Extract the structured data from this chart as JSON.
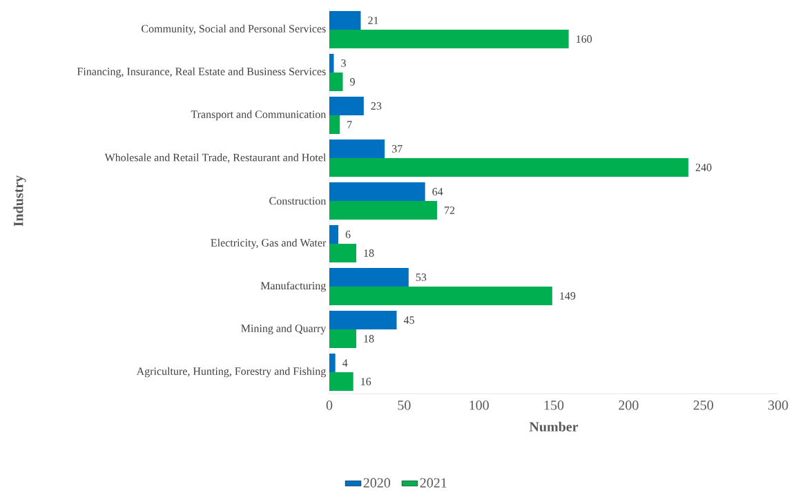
{
  "chart_data": {
    "type": "bar",
    "orientation": "horizontal",
    "xlabel": "Number",
    "ylabel": "Industry",
    "categories": [
      "Community, Social and Personal Services",
      "Financing, Insurance, Real Estate and Business Services",
      "Transport and Communication",
      "Wholesale and Retail Trade, Restaurant and Hotel",
      "Construction",
      "Electricity, Gas and Water",
      "Manufacturing",
      "Mining and Quarry",
      "Agriculture, Hunting, Forestry and Fishing"
    ],
    "series": [
      {
        "name": "2020",
        "color": "#0070c0",
        "values": [
          21,
          3,
          23,
          37,
          64,
          6,
          53,
          45,
          4
        ]
      },
      {
        "name": "2021",
        "color": "#00b050",
        "values": [
          160,
          9,
          7,
          240,
          72,
          18,
          149,
          18,
          16
        ]
      }
    ],
    "xlim": [
      0,
      300
    ],
    "xticks": [
      0,
      50,
      100,
      150,
      200,
      250,
      300
    ],
    "data_labels": true,
    "legend": "bottom",
    "grid": false
  }
}
